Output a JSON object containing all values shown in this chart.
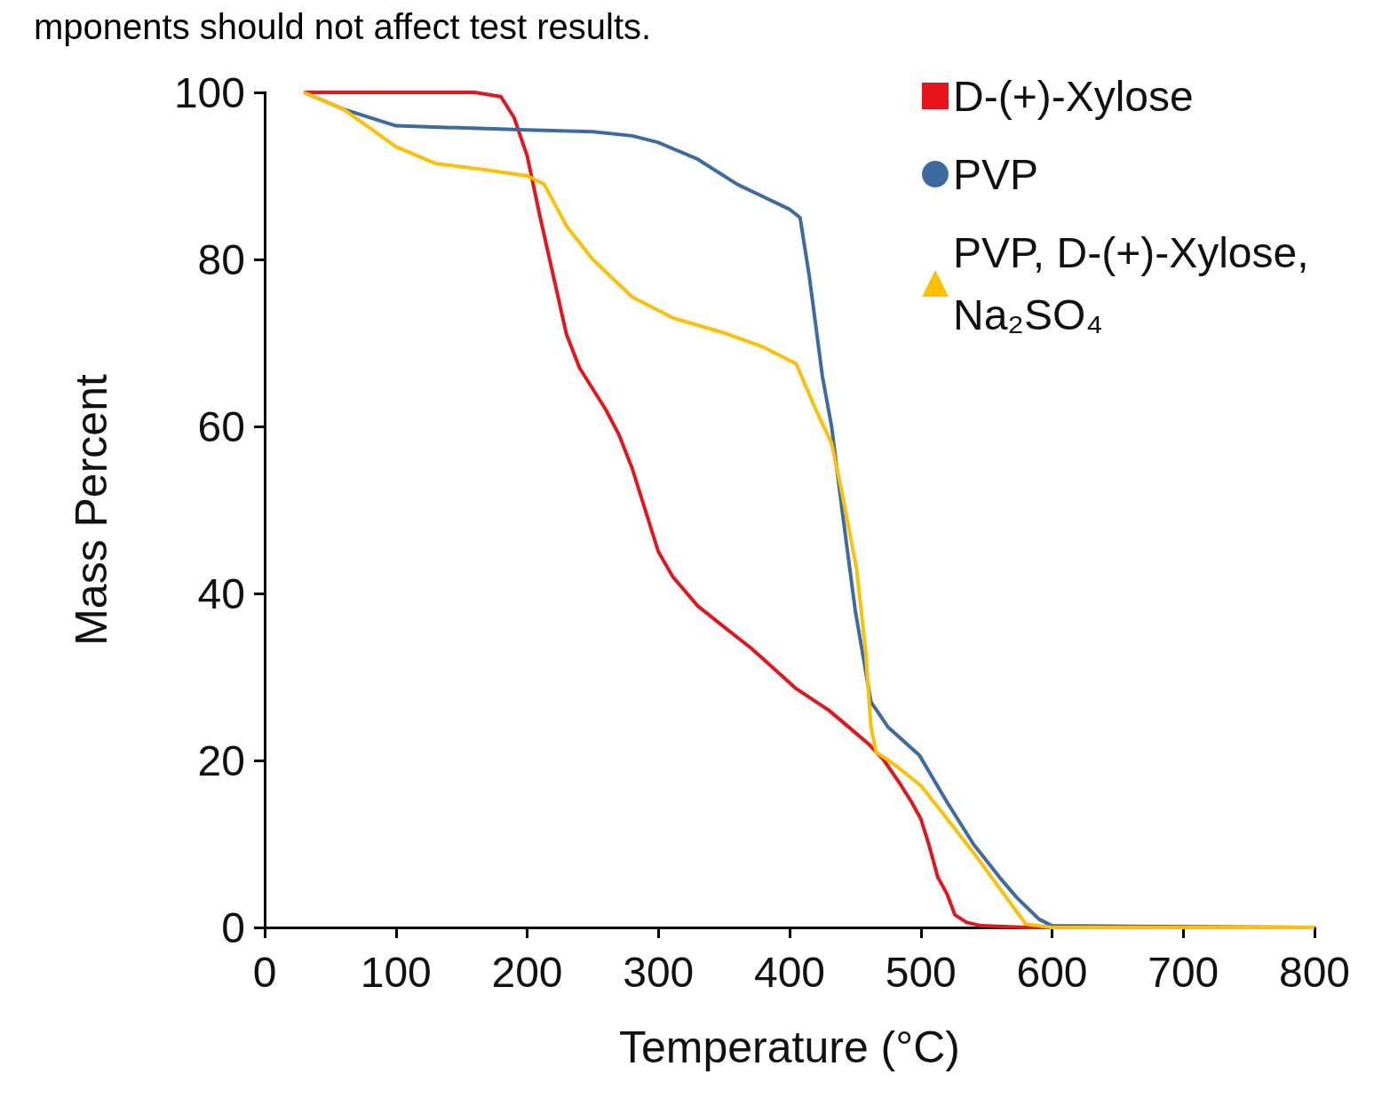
{
  "chart_data": {
    "type": "line",
    "xlabel": "Temperature (°C)",
    "ylabel": "Mass Percent",
    "annotations": [
      "mponents should not affect test results."
    ],
    "xlim": [
      0,
      800
    ],
    "xticks": [
      0,
      100,
      200,
      300,
      400,
      500,
      600,
      700,
      800
    ],
    "ylim": [
      0,
      100
    ],
    "yticks": [
      0,
      20,
      40,
      60,
      80,
      100
    ],
    "grid": false,
    "legend": "top right",
    "series": [
      {
        "name": "D-(+)-Xylose",
        "color": "#e8141b",
        "x": [
          30,
          100,
          160,
          180,
          190,
          200,
          210,
          220,
          230,
          240,
          260,
          270,
          280,
          290,
          300,
          311,
          330,
          350,
          371,
          405,
          430,
          445,
          460,
          472,
          485,
          493,
          500,
          506,
          513,
          520,
          526,
          535,
          546,
          580,
          800
        ],
        "values": [
          100,
          100,
          100,
          99.5,
          97,
          92.4,
          85,
          78,
          71,
          67,
          62,
          59,
          55,
          50,
          45,
          42,
          38.5,
          36,
          33.4,
          28.6,
          26,
          24,
          22,
          20,
          17,
          15,
          13,
          10,
          6,
          4,
          1.5,
          0.6,
          0.2,
          0,
          0
        ]
      },
      {
        "name": "PVP",
        "color": "#3d6aa1",
        "x": [
          30,
          60,
          100,
          200,
          250,
          280,
          300,
          330,
          360,
          380,
          400,
          408,
          415,
          425,
          432,
          440,
          450,
          462,
          475,
          499,
          520,
          540,
          560,
          573,
          590,
          600,
          800
        ],
        "values": [
          100,
          98,
          96,
          95.5,
          95.3,
          94.8,
          94,
          92,
          89,
          87.5,
          86,
          85,
          78,
          66,
          60,
          50,
          38,
          27,
          24,
          20.6,
          15,
          10,
          6,
          3.6,
          1,
          0.2,
          0
        ]
      },
      {
        "name": "PVP, D-(+)-Xylose, Na₂SO₄",
        "color": "#ffc000",
        "x": [
          30,
          60,
          100,
          130,
          170,
          200,
          213,
          230,
          250,
          280,
          311,
          350,
          380,
          405,
          420,
          432,
          440,
          451,
          458,
          462,
          466,
          480,
          500,
          520,
          540,
          560,
          580,
          600,
          800
        ],
        "values": [
          100,
          98,
          93.5,
          91.5,
          90.7,
          90,
          89,
          84,
          80,
          75.5,
          73,
          71.2,
          69.5,
          67.5,
          62,
          58,
          52,
          43,
          33,
          24,
          21,
          19.5,
          17,
          13,
          9,
          4.7,
          0.4,
          0,
          0
        ]
      }
    ]
  }
}
